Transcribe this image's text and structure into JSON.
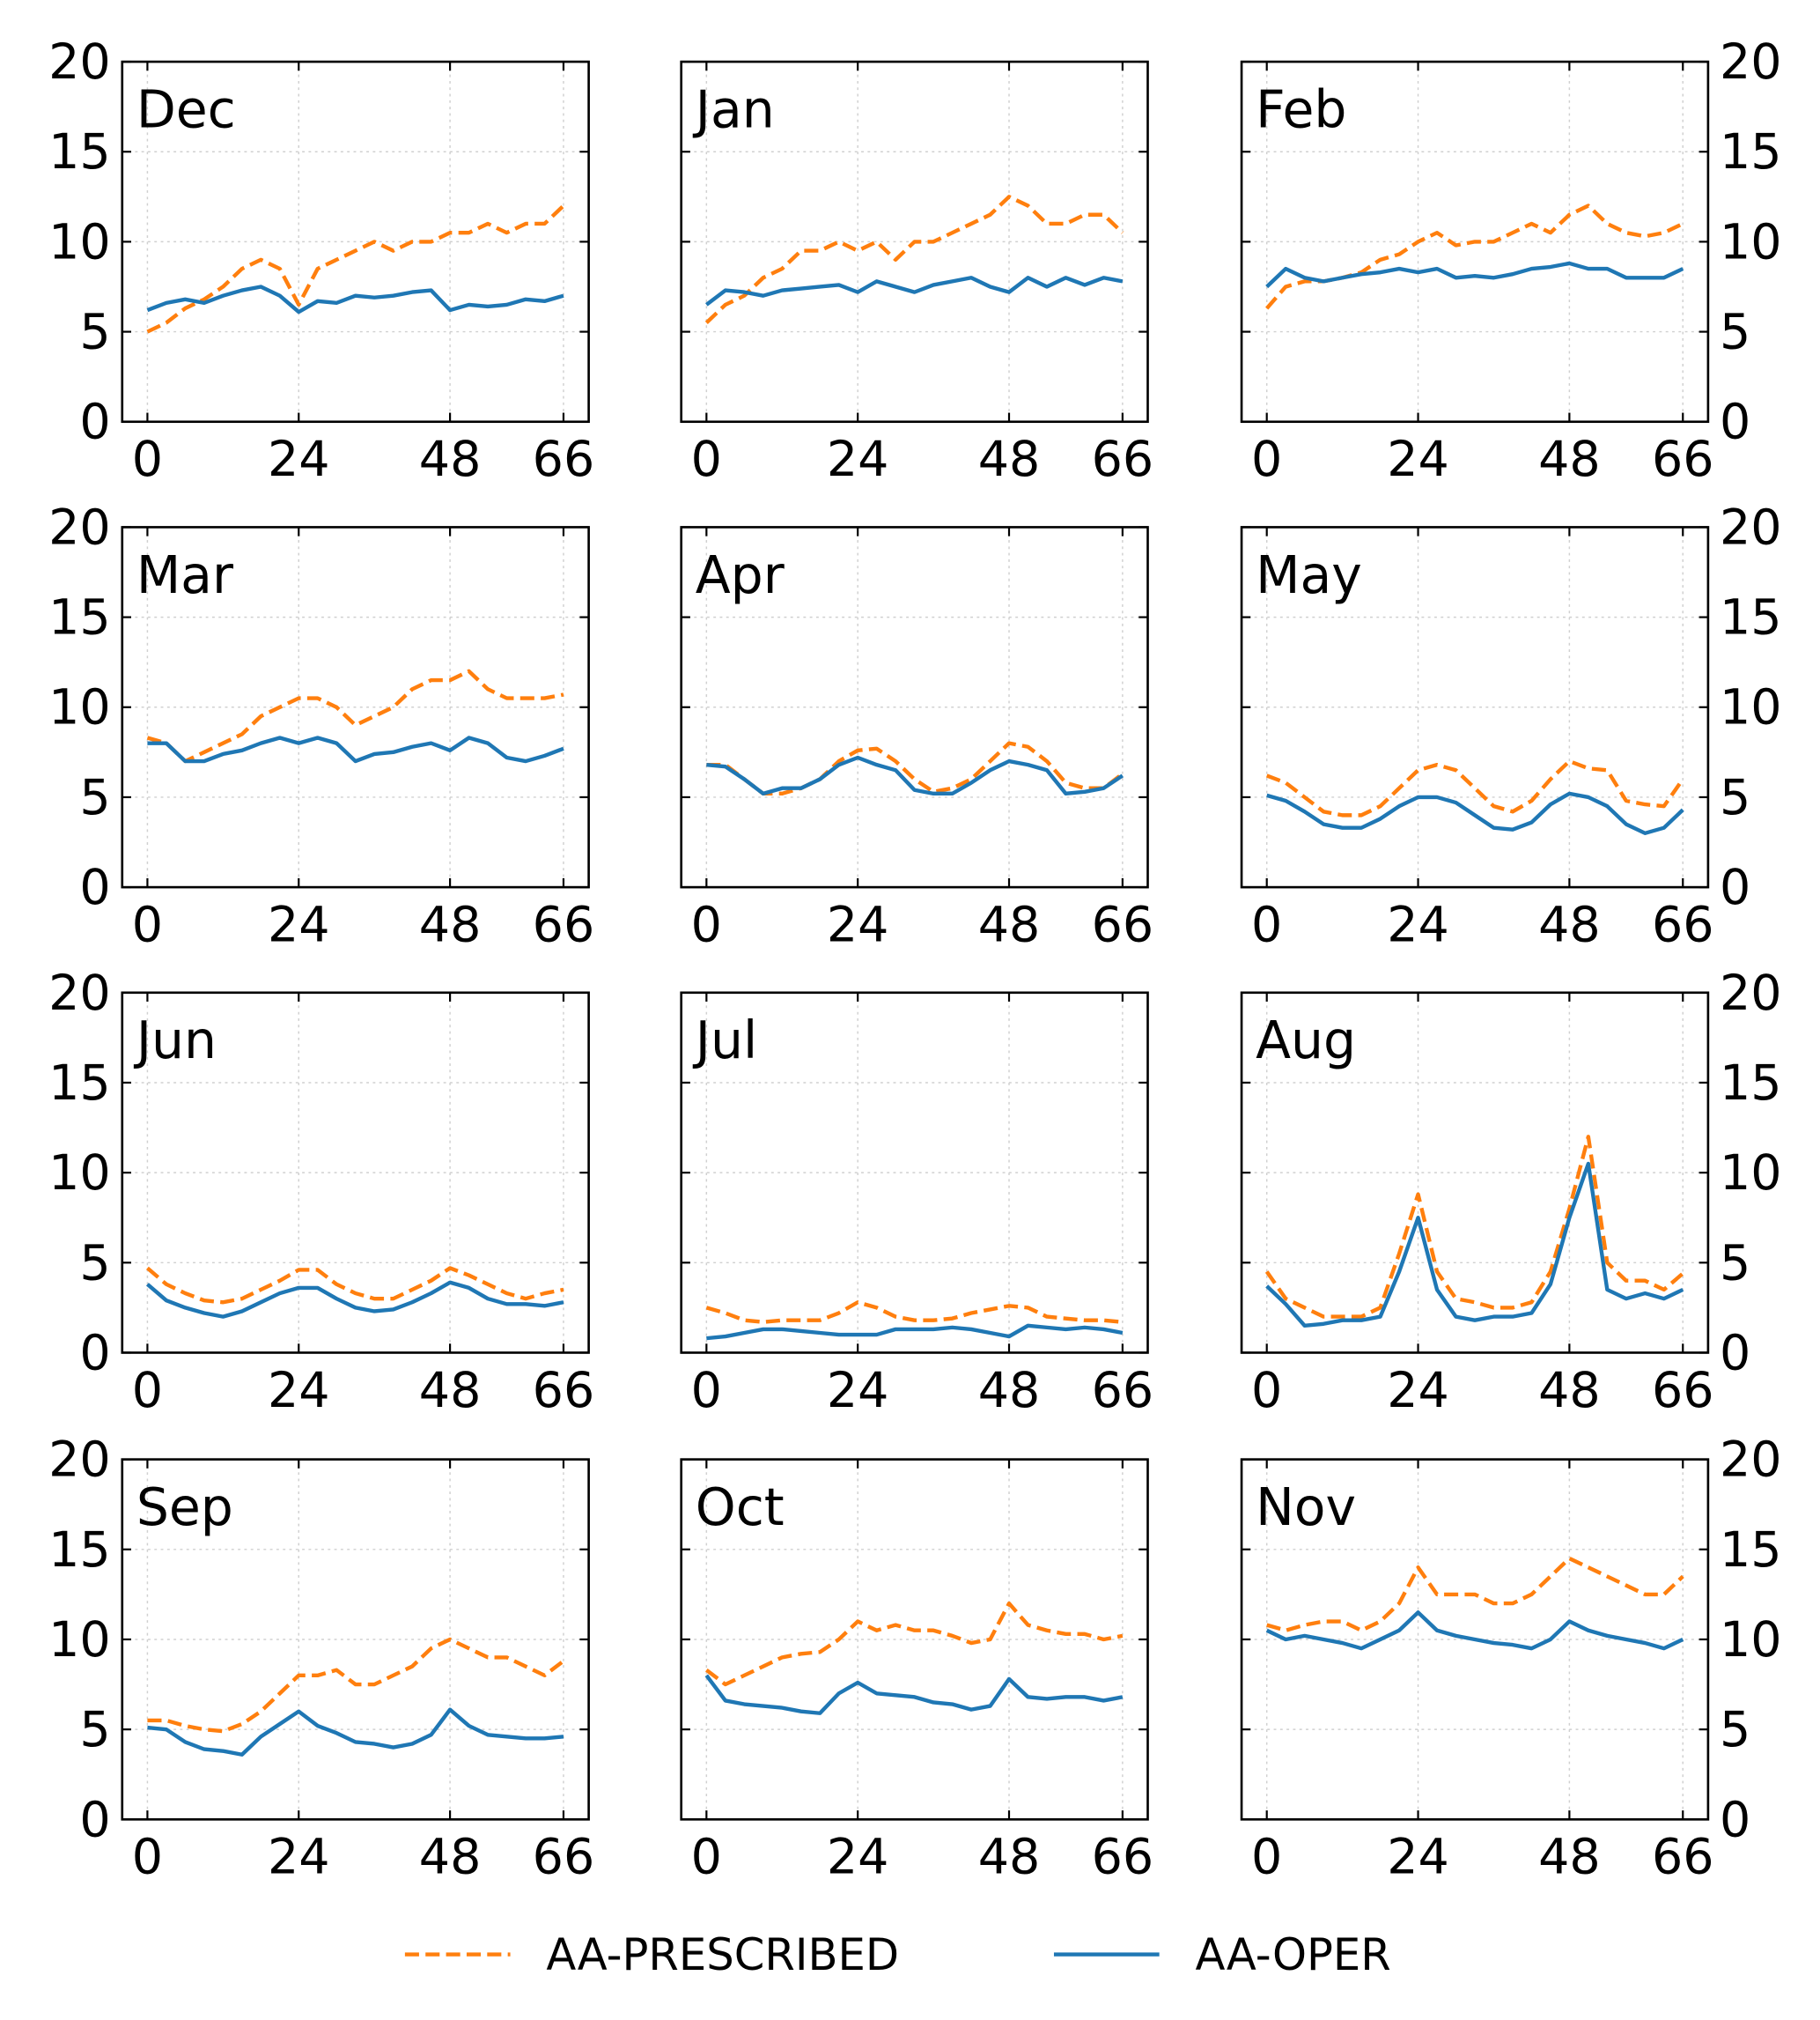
{
  "chart_data": {
    "type": "line",
    "xlim": [
      -4,
      70
    ],
    "ylim": [
      0,
      20
    ],
    "xticks": [
      0,
      24,
      48,
      66
    ],
    "yticks": [
      0,
      5,
      10,
      15,
      20
    ],
    "grid": true,
    "x": [
      0,
      3,
      6,
      9,
      12,
      15,
      18,
      21,
      24,
      27,
      30,
      33,
      36,
      39,
      42,
      45,
      48,
      51,
      54,
      57,
      60,
      63,
      66
    ],
    "series": [
      {
        "name": "AA-PRESCRIBED",
        "color": "#ff7f0e",
        "dashed": true
      },
      {
        "name": "AA-OPER",
        "color": "#1f77b4",
        "dashed": false
      }
    ],
    "panels": [
      {
        "title": "Dec",
        "values": [
          [
            5,
            5.5,
            6.3,
            6.8,
            7.5,
            8.5,
            9,
            8.5,
            6.5,
            8.5,
            9,
            9.5,
            10,
            9.5,
            10,
            10,
            10.5,
            10.5,
            11,
            10.5,
            11,
            11,
            12
          ],
          [
            6.2,
            6.6,
            6.8,
            6.6,
            7,
            7.3,
            7.5,
            7,
            6.1,
            6.7,
            6.6,
            7,
            6.9,
            7,
            7.2,
            7.3,
            6.2,
            6.5,
            6.4,
            6.5,
            6.8,
            6.7,
            7
          ]
        ]
      },
      {
        "title": "Jan",
        "values": [
          [
            5.5,
            6.5,
            7,
            8,
            8.5,
            9.5,
            9.5,
            10,
            9.5,
            10,
            9,
            10,
            10,
            10.5,
            11,
            11.5,
            12.5,
            12,
            11,
            11,
            11.5,
            11.5,
            10.5
          ],
          [
            6.5,
            7.3,
            7.2,
            7,
            7.3,
            7.4,
            7.5,
            7.6,
            7.2,
            7.8,
            7.5,
            7.2,
            7.6,
            7.8,
            8,
            7.5,
            7.2,
            8,
            7.5,
            8,
            7.6,
            8,
            7.8
          ]
        ]
      },
      {
        "title": "Feb",
        "values": [
          [
            6.3,
            7.5,
            7.8,
            7.8,
            8,
            8.3,
            9,
            9.3,
            10,
            10.5,
            9.8,
            10,
            10,
            10.5,
            11,
            10.5,
            11.5,
            12,
            11,
            10.5,
            10.3,
            10.5,
            11
          ],
          [
            7.5,
            8.5,
            8,
            7.8,
            8,
            8.2,
            8.3,
            8.5,
            8.3,
            8.5,
            8,
            8.1,
            8,
            8.2,
            8.5,
            8.6,
            8.8,
            8.5,
            8.5,
            8,
            8,
            8,
            8.5
          ]
        ]
      },
      {
        "title": "Mar",
        "values": [
          [
            8.3,
            8,
            7,
            7.5,
            8,
            8.5,
            9.5,
            10,
            10.5,
            10.5,
            10,
            9,
            9.5,
            10,
            11,
            11.5,
            11.5,
            12,
            11,
            10.5,
            10.5,
            10.5,
            10.7
          ],
          [
            8,
            8,
            7,
            7,
            7.4,
            7.6,
            8,
            8.3,
            8,
            8.3,
            8,
            7,
            7.4,
            7.5,
            7.8,
            8,
            7.6,
            8.3,
            8,
            7.2,
            7,
            7.3,
            7.7
          ]
        ]
      },
      {
        "title": "Apr",
        "values": [
          [
            6.8,
            6.8,
            6,
            5.2,
            5.2,
            5.5,
            6,
            7,
            7.6,
            7.7,
            7,
            6,
            5.3,
            5.5,
            6,
            7,
            8,
            7.8,
            7,
            5.8,
            5.5,
            5.5,
            6.3
          ],
          [
            6.8,
            6.7,
            6,
            5.2,
            5.5,
            5.5,
            6,
            6.8,
            7.2,
            6.8,
            6.5,
            5.4,
            5.2,
            5.2,
            5.8,
            6.5,
            7,
            6.8,
            6.5,
            5.2,
            5.3,
            5.5,
            6.2
          ]
        ]
      },
      {
        "title": "May",
        "values": [
          [
            6.2,
            5.8,
            5,
            4.2,
            4,
            4,
            4.5,
            5.5,
            6.5,
            6.8,
            6.5,
            5.5,
            4.5,
            4.2,
            4.8,
            6,
            7,
            6.6,
            6.5,
            4.8,
            4.6,
            4.5,
            6
          ],
          [
            5.1,
            4.8,
            4.2,
            3.5,
            3.3,
            3.3,
            3.8,
            4.5,
            5,
            5,
            4.7,
            4,
            3.3,
            3.2,
            3.6,
            4.6,
            5.2,
            5,
            4.5,
            3.5,
            3,
            3.3,
            4.3
          ]
        ]
      },
      {
        "title": "Jun",
        "values": [
          [
            4.7,
            3.8,
            3.3,
            2.9,
            2.8,
            3,
            3.5,
            4,
            4.6,
            4.6,
            3.8,
            3.3,
            3,
            3,
            3.5,
            4,
            4.7,
            4.3,
            3.8,
            3.3,
            3,
            3.3,
            3.5
          ],
          [
            3.8,
            2.9,
            2.5,
            2.2,
            2,
            2.3,
            2.8,
            3.3,
            3.6,
            3.6,
            3,
            2.5,
            2.3,
            2.4,
            2.8,
            3.3,
            3.9,
            3.6,
            3,
            2.7,
            2.7,
            2.6,
            2.8
          ]
        ]
      },
      {
        "title": "Jul",
        "values": [
          [
            2.5,
            2.2,
            1.8,
            1.7,
            1.8,
            1.8,
            1.8,
            2.2,
            2.8,
            2.5,
            2,
            1.8,
            1.8,
            1.9,
            2.2,
            2.4,
            2.6,
            2.5,
            2,
            1.9,
            1.8,
            1.8,
            1.7
          ],
          [
            0.8,
            0.9,
            1.1,
            1.3,
            1.3,
            1.2,
            1.1,
            1,
            1,
            1,
            1.3,
            1.3,
            1.3,
            1.4,
            1.3,
            1.1,
            0.9,
            1.5,
            1.4,
            1.3,
            1.4,
            1.3,
            1.1
          ]
        ]
      },
      {
        "title": "Aug",
        "values": [
          [
            4.5,
            3,
            2.5,
            2,
            2,
            2,
            2.5,
            5.5,
            8.8,
            4.5,
            3,
            2.8,
            2.5,
            2.5,
            2.8,
            4.5,
            8,
            12,
            5,
            4,
            4,
            3.5,
            4.4
          ],
          [
            3.7,
            2.7,
            1.5,
            1.6,
            1.8,
            1.8,
            2,
            4.5,
            7.5,
            3.5,
            2,
            1.8,
            2,
            2,
            2.2,
            3.8,
            7.5,
            10.5,
            3.5,
            3,
            3.3,
            3,
            3.5
          ]
        ]
      },
      {
        "title": "Sep",
        "values": [
          [
            5.5,
            5.5,
            5.2,
            5,
            4.9,
            5.3,
            6,
            7,
            8,
            8,
            8.3,
            7.5,
            7.5,
            8,
            8.5,
            9.5,
            10,
            9.5,
            9,
            9,
            8.5,
            8,
            8.8
          ],
          [
            5.1,
            5,
            4.3,
            3.9,
            3.8,
            3.6,
            4.6,
            5.3,
            6,
            5.2,
            4.8,
            4.3,
            4.2,
            4,
            4.2,
            4.7,
            6.1,
            5.2,
            4.7,
            4.6,
            4.5,
            4.5,
            4.6
          ]
        ]
      },
      {
        "title": "Oct",
        "values": [
          [
            8.3,
            7.5,
            8,
            8.5,
            9,
            9.2,
            9.3,
            10,
            11,
            10.5,
            10.8,
            10.5,
            10.5,
            10.2,
            9.8,
            10,
            12,
            10.8,
            10.5,
            10.3,
            10.3,
            10,
            10.2
          ],
          [
            8,
            6.6,
            6.4,
            6.3,
            6.2,
            6,
            5.9,
            7,
            7.6,
            7,
            6.9,
            6.8,
            6.5,
            6.4,
            6.1,
            6.3,
            7.8,
            6.8,
            6.7,
            6.8,
            6.8,
            6.6,
            6.8
          ]
        ]
      },
      {
        "title": "Nov",
        "values": [
          [
            10.8,
            10.5,
            10.8,
            11,
            11,
            10.5,
            11,
            12,
            14,
            12.5,
            12.5,
            12.5,
            12,
            12,
            12.5,
            13.5,
            14.5,
            14,
            13.5,
            13,
            12.5,
            12.5,
            13.5
          ],
          [
            10.5,
            10,
            10.2,
            10,
            9.8,
            9.5,
            10,
            10.5,
            11.5,
            10.5,
            10.2,
            10,
            9.8,
            9.7,
            9.5,
            10,
            11,
            10.5,
            10.2,
            10,
            9.8,
            9.5,
            10
          ]
        ]
      }
    ]
  }
}
